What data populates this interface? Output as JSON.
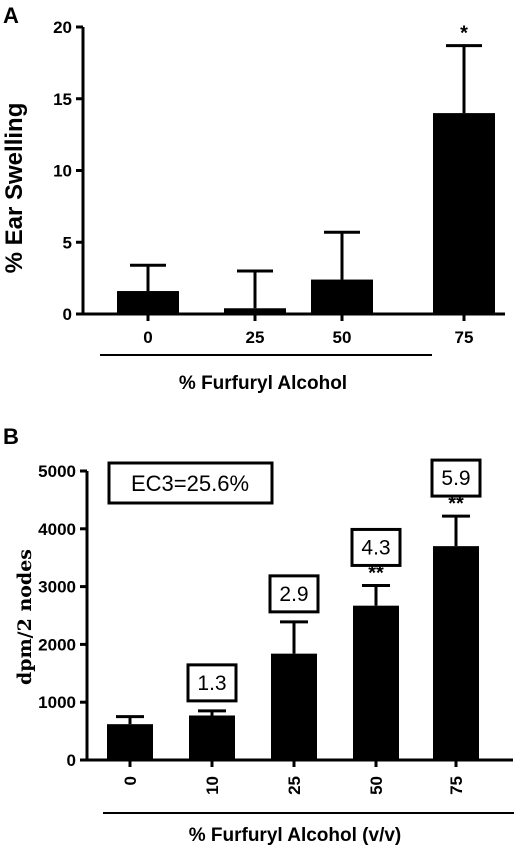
{
  "chart_data": [
    {
      "type": "bar",
      "panel_label": "A",
      "categories": [
        "0",
        "25",
        "50",
        "75"
      ],
      "values": [
        1.6,
        0.4,
        2.4,
        14.0
      ],
      "error": [
        1.8,
        2.6,
        3.3,
        4.7
      ],
      "significance": [
        "",
        "",
        "",
        "*"
      ],
      "ylabel": "% Ear Swelling",
      "xlabel": "% Furfuryl Alcohol",
      "ylim": [
        0,
        20
      ],
      "yticks": [
        "0",
        "5",
        "10",
        "15",
        "20"
      ],
      "ytick_values": [
        0,
        5,
        10,
        15,
        20
      ],
      "grid": false,
      "bar_color": "#000000"
    },
    {
      "type": "bar",
      "panel_label": "B",
      "categories": [
        "0",
        "10",
        "25",
        "50",
        "75"
      ],
      "values": [
        620,
        770,
        1840,
        2670,
        3700
      ],
      "error": [
        130,
        80,
        550,
        350,
        520
      ],
      "significance": [
        "",
        "",
        "",
        "**",
        "**"
      ],
      "stimulation_index": [
        "",
        "1.3",
        "2.9",
        "4.3",
        "5.9"
      ],
      "annotation": "EC3=25.6%",
      "ylabel": "dpm/2 nodes",
      "xlabel": "% Furfuryl Alcohol (v/v)",
      "ylim": [
        0,
        5000
      ],
      "yticks": [
        "0",
        "1000",
        "2000",
        "3000",
        "4000",
        "5000"
      ],
      "ytick_values": [
        0,
        1000,
        2000,
        3000,
        4000,
        5000
      ],
      "grid": false,
      "bar_color": "#000000"
    }
  ]
}
